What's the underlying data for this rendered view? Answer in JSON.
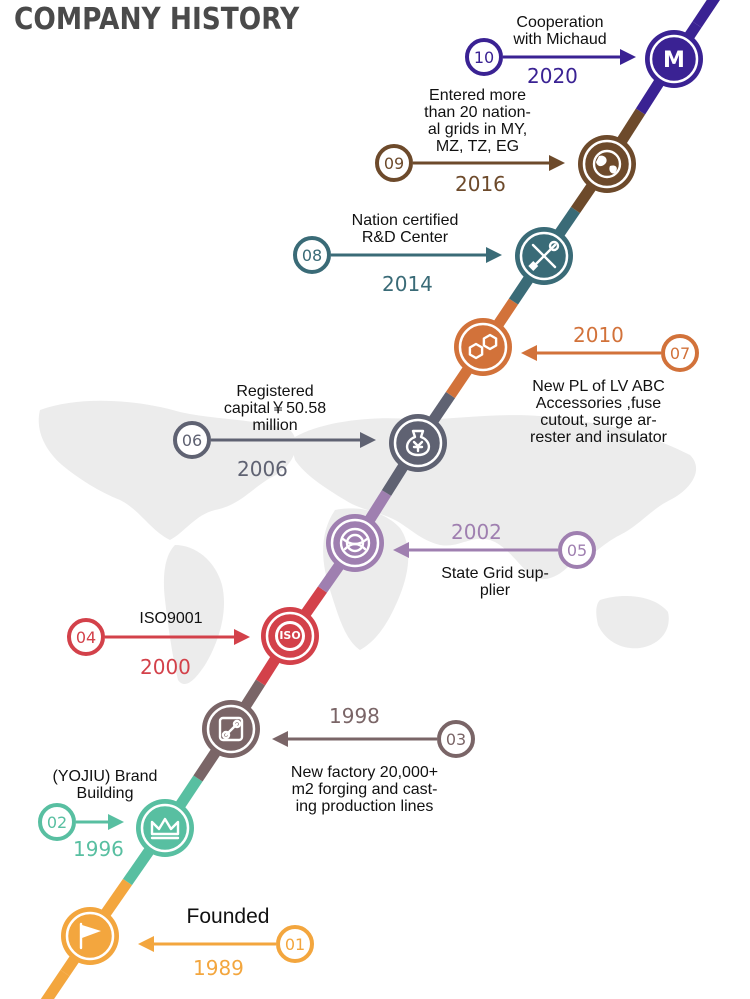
{
  "title": "COMPANY HISTORY",
  "milestones": [
    {
      "num": "01",
      "year": "1989",
      "label": "Founded",
      "color": "#f3a63e",
      "icon": "flag-icon"
    },
    {
      "num": "02",
      "year": "1996",
      "label": "(YOJIU) Brand\nBuilding",
      "color": "#58bfa1",
      "icon": "crown-icon"
    },
    {
      "num": "03",
      "year": "1998",
      "label": "New factory 20,000+\nm2 forging and cast-\ning production lines",
      "color": "#7a6567",
      "icon": "factory-icon"
    },
    {
      "num": "04",
      "year": "2000",
      "label": "ISO9001",
      "color": "#d3414a",
      "icon": "iso-icon",
      "icon_text": "ISO"
    },
    {
      "num": "05",
      "year": "2002",
      "label": "State Grid sup-\nplier",
      "color": "#9f7fb0",
      "icon": "state-grid-icon"
    },
    {
      "num": "06",
      "year": "2006",
      "label": "Registered\ncapital￥50.58\nmillion",
      "color": "#5f6272",
      "icon": "money-bag-icon"
    },
    {
      "num": "07",
      "year": "2010",
      "label": "New PL of LV ABC\nAccessories ,fuse\ncutout, surge ar-\nrester and insulator",
      "color": "#d2723a",
      "icon": "hexagon-molecule-icon"
    },
    {
      "num": "08",
      "year": "2014",
      "label": "Nation certified\nR&D Center",
      "color": "#3a6b77",
      "icon": "wrench-screwdriver-icon"
    },
    {
      "num": "09",
      "year": "2016",
      "label": "Entered more\nthan 20 nation-\nal grids in MY,\nMZ, TZ, EG",
      "color": "#6d4a2b",
      "icon": "globe-icon"
    },
    {
      "num": "10",
      "year": "2020",
      "label": "Cooperation\nwith Michaud",
      "color": "#3a2293",
      "icon": "michaud-logo-icon",
      "icon_text": "M"
    }
  ],
  "line_segments": [
    "#f3a63e",
    "#58bfa1",
    "#7a6567",
    "#d3414a",
    "#9f7fb0",
    "#5f6272",
    "#d2723a",
    "#3a6b77",
    "#6d4a2b",
    "#3a2293"
  ]
}
